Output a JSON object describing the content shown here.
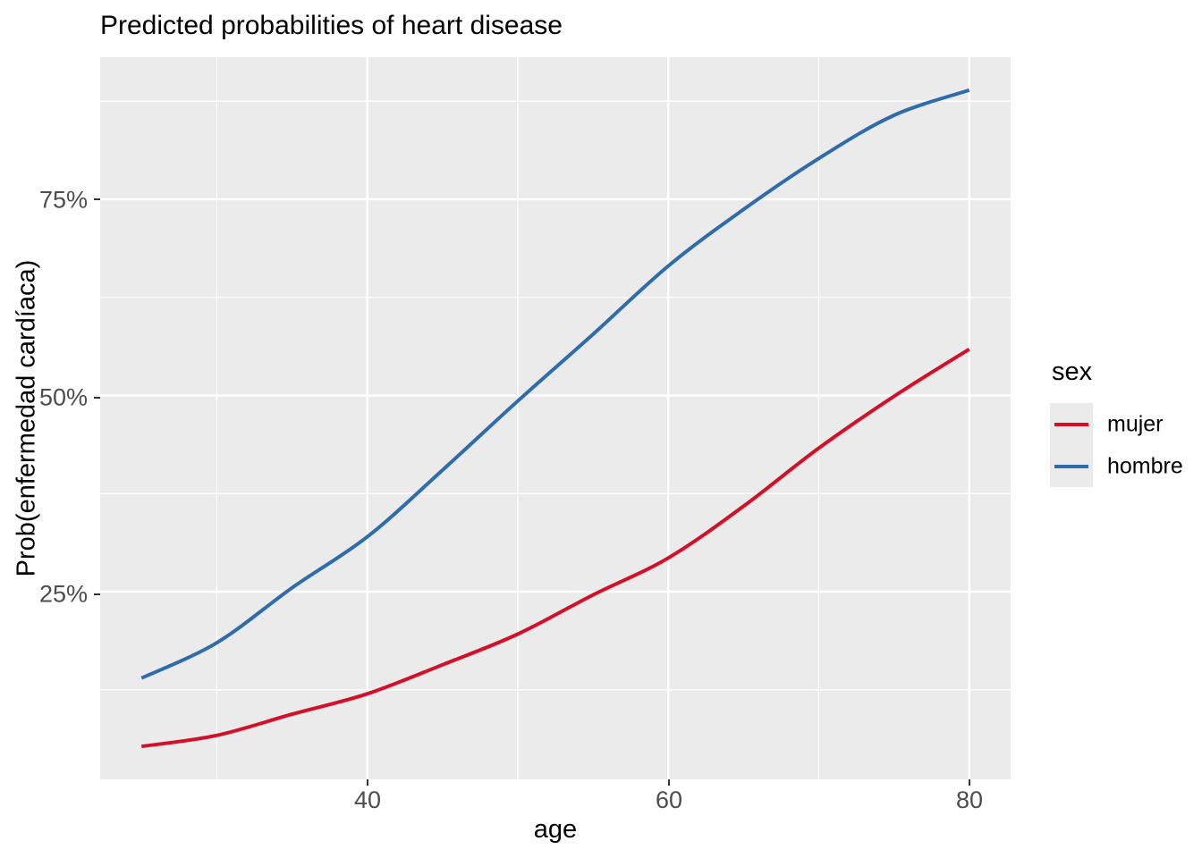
{
  "title": "Predicted probabilities of heart disease",
  "axes": {
    "x": {
      "label": "age",
      "ticks": [
        "40",
        "60",
        "80"
      ],
      "tick_values": [
        40,
        60,
        80
      ],
      "minor_tick_values": [
        30,
        50,
        70
      ],
      "domain": [
        22.25,
        82.75
      ]
    },
    "y": {
      "label": "Prob(enfermedad cardíaca)",
      "ticks": [
        "25%",
        "50%",
        "75%"
      ],
      "tick_values": [
        25,
        50,
        75
      ],
      "minor_tick_values": [
        12.5,
        37.5,
        62.5,
        87.5
      ],
      "domain": [
        1.1,
        93.1
      ]
    }
  },
  "legend": {
    "title": "sex",
    "items": [
      {
        "label": "mujer",
        "color": "#D50F27"
      },
      {
        "label": "hombre",
        "color": "#2E6CAE"
      }
    ]
  },
  "colors": {
    "panel_background": "#EBEBEB",
    "gridline": "#FFFFFF",
    "tick_text": "#4D4D4D",
    "tick_mark": "#333333",
    "mujer": "#D50F27",
    "hombre": "#2E6CAE"
  },
  "chart_data": {
    "type": "line",
    "title": "Predicted probabilities of heart disease",
    "xlabel": "age",
    "ylabel": "Prob(enfermedad cardíaca)",
    "x": [
      25,
      30,
      35,
      40,
      45,
      50,
      55,
      60,
      65,
      70,
      75,
      80
    ],
    "series": [
      {
        "name": "mujer",
        "color": "#D50F27",
        "values": [
          5.3,
          6.7,
          9.4,
          12.0,
          15.7,
          19.6,
          24.6,
          29.3,
          35.9,
          43.3,
          49.9,
          55.9
        ]
      },
      {
        "name": "hombre",
        "color": "#2E6CAE",
        "values": [
          14.0,
          18.5,
          25.5,
          32.0,
          40.5,
          49.3,
          57.8,
          66.5,
          73.7,
          80.2,
          85.7,
          88.9
        ]
      }
    ],
    "y_unit": "percent",
    "x_range": [
      22.25,
      82.75
    ],
    "y_range": [
      1.1,
      93.1
    ],
    "grid": "major+minor white on gray panel",
    "legend_position": "right"
  }
}
